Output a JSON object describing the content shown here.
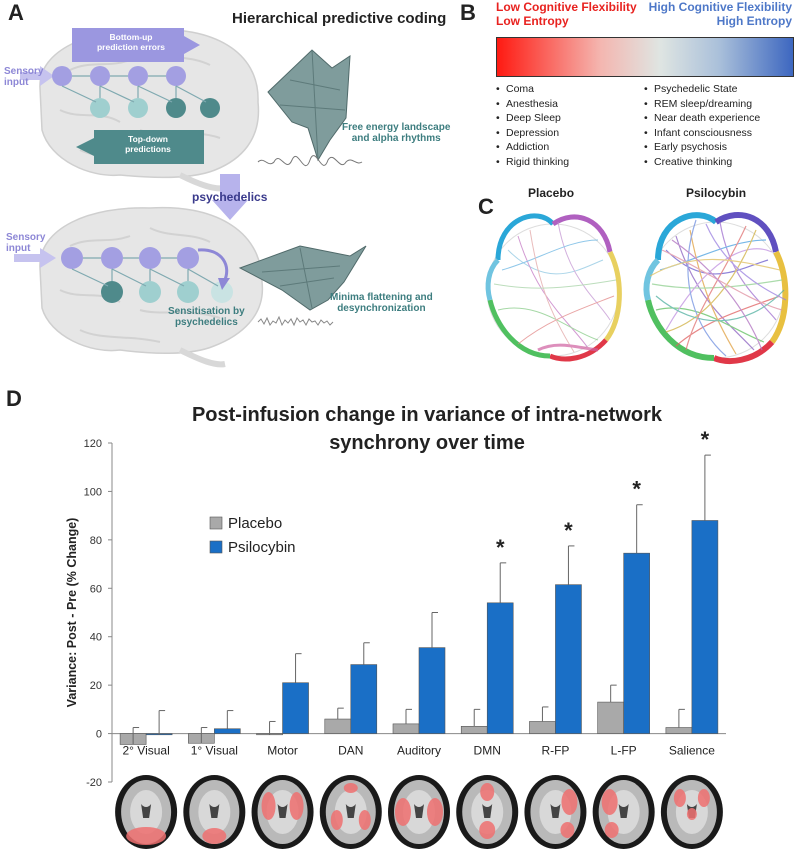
{
  "colors": {
    "low_red": "#e8221f",
    "high_blue": "#4e78c8",
    "placebo_gray": "#a9a9a9",
    "psilocybin_blue": "#1a6fc6",
    "teal": "#3d7d7f",
    "lavender": "#8d87d6"
  },
  "panel_a": {
    "letter": "A",
    "title": "Hierarchical predictive coding",
    "bottom_up": "Bottom-up\nprediction errors",
    "top_down": "Top-down\npredictions",
    "sensory_input": "Sensory\ninput",
    "free_energy": "Free energy landscape\nand alpha rhythms",
    "psychedelics": "psychedelics",
    "sensory_input_2": "Sensory\ninput",
    "sensitisation": "Sensitisation by\npsychedelics",
    "minima": "Minima flattening and\ndesynchronization"
  },
  "panel_b": {
    "letter": "B",
    "low_title_1": "Low Cognitive Flexibility",
    "low_title_2": "Low Entropy",
    "high_title_1": "High Cognitive Flexibility",
    "high_title_2": "High Entropy",
    "left_list": [
      "Coma",
      "Anesthesia",
      "Deep Sleep",
      "Depression",
      "Addiction",
      "Rigid thinking"
    ],
    "right_list": [
      "Psychedelic State",
      "REM sleep/dreaming",
      "Near death experience",
      "Infant consciousness",
      "Early psychosis",
      "Creative thinking"
    ]
  },
  "panel_c": {
    "letter": "C",
    "left_label": "Placebo",
    "right_label": "Psilocybin"
  },
  "panel_d": {
    "letter": "D"
  },
  "chart_data": {
    "type": "bar",
    "title": "Post-infusion change in variance of intra-network synchrony over time",
    "title_line1": "Post-infusion change in variance of intra-network",
    "title_line2": "synchrony over time",
    "ylabel": "Variance: Post - Pre (% Change)",
    "xlabel": "",
    "ylim": [
      -20,
      120
    ],
    "yticks": [
      -20,
      0,
      20,
      40,
      60,
      80,
      100,
      120
    ],
    "categories": [
      "2° Visual",
      "1° Visual",
      "Motor",
      "DAN",
      "Auditory",
      "DMN",
      "R-FP",
      "L-FP",
      "Salience"
    ],
    "series": [
      {
        "name": "Placebo",
        "values": [
          -4.5,
          -4,
          -0.5,
          6,
          4,
          3,
          5,
          13,
          2.5
        ],
        "errors": [
          7,
          6.5,
          5.5,
          4.5,
          6,
          7,
          6,
          7,
          7.5
        ]
      },
      {
        "name": "Psilocybin",
        "values": [
          -0.5,
          2,
          21,
          28.5,
          35.5,
          54,
          61.5,
          74.5,
          88
        ],
        "errors": [
          10,
          7.5,
          12,
          9,
          14.5,
          16.5,
          16,
          20,
          27
        ]
      }
    ],
    "significant": [
      false,
      false,
      false,
      false,
      false,
      true,
      true,
      true,
      true
    ],
    "significance_mark": "*",
    "legend": "left",
    "grid": false
  }
}
